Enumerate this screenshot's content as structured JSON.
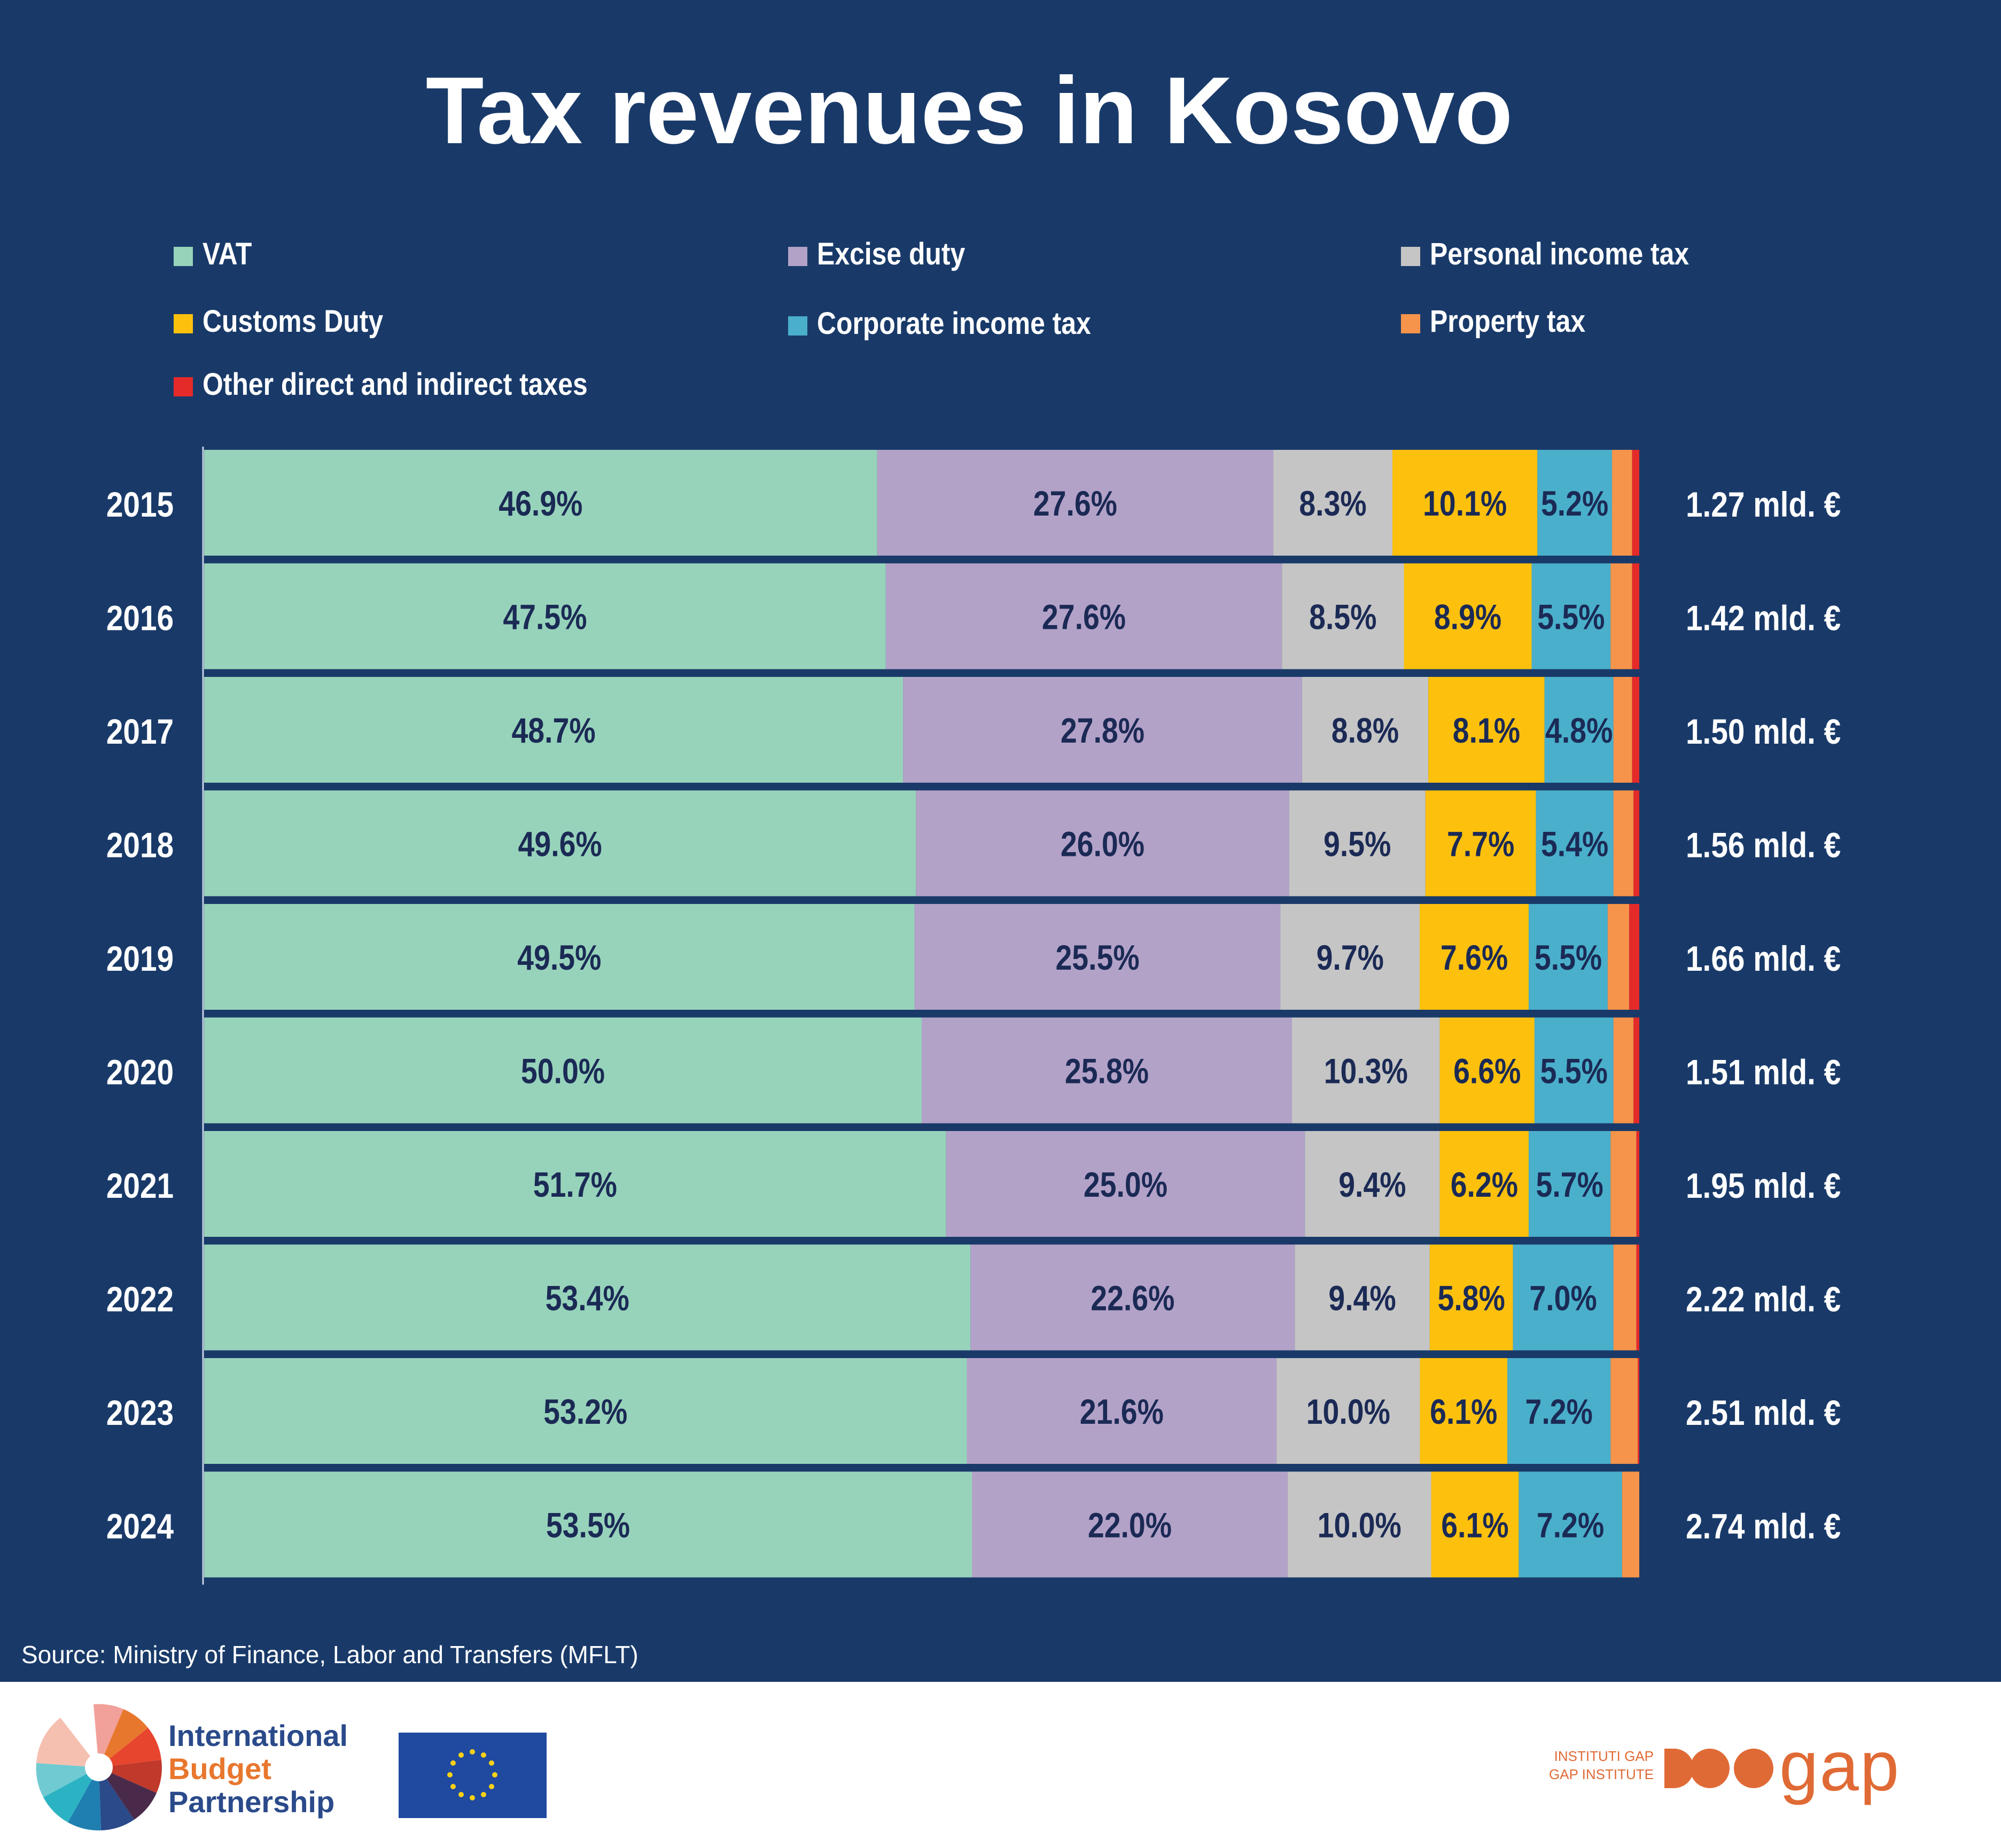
{
  "title": "Tax revenues in Kosovo",
  "legend": [
    {
      "label": "VAT",
      "color": "#97d3bb"
    },
    {
      "label": "Excise duty",
      "color": "#b3a2c8"
    },
    {
      "label": "Personal income tax",
      "color": "#c5c5c5"
    },
    {
      "label": "Customs Duty",
      "color": "#fdc10d"
    },
    {
      "label": "Corporate income tax",
      "color": "#4aafcb"
    },
    {
      "label": "Property tax",
      "color": "#f5944a"
    },
    {
      "label": "Other direct and indirect taxes",
      "color": "#e52a2a"
    }
  ],
  "chart_data": {
    "type": "bar",
    "orientation": "horizontal",
    "stacked": true,
    "normalized": true,
    "categories": [
      "2015",
      "2016",
      "2017",
      "2018",
      "2019",
      "2020",
      "2021",
      "2022",
      "2023",
      "2024"
    ],
    "series": [
      {
        "name": "VAT",
        "color": "#97d3bb",
        "values": [
          46.9,
          47.5,
          48.7,
          49.6,
          49.5,
          50.0,
          51.7,
          53.4,
          53.2,
          53.5
        ],
        "labels": [
          "46.9%",
          "47.5%",
          "48.7%",
          "49.6%",
          "49.5%",
          "50.0%",
          "51.7%",
          "53.4%",
          "53.2%",
          "53.5%"
        ]
      },
      {
        "name": "Excise duty",
        "color": "#b3a2c8",
        "values": [
          27.6,
          27.6,
          27.8,
          26.0,
          25.5,
          25.8,
          25.0,
          22.6,
          21.6,
          22.0
        ],
        "labels": [
          "27.6%",
          "27.6%",
          "27.8%",
          "26.0%",
          "25.5%",
          "25.8%",
          "25.0%",
          "22.6%",
          "21.6%",
          "22.0%"
        ]
      },
      {
        "name": "Personal income tax",
        "color": "#c5c5c5",
        "values": [
          8.3,
          8.5,
          8.8,
          9.5,
          9.7,
          10.3,
          9.4,
          9.4,
          10.0,
          10.0
        ],
        "labels": [
          "8.3%",
          "8.5%",
          "8.8%",
          "9.5%",
          "9.7%",
          "10.3%",
          "9.4%",
          "9.4%",
          "10.0%",
          "10.0%"
        ]
      },
      {
        "name": "Customs Duty",
        "color": "#fdc10d",
        "values": [
          10.1,
          8.9,
          8.1,
          7.7,
          7.6,
          6.6,
          6.2,
          5.8,
          6.1,
          6.1
        ],
        "labels": [
          "10.1%",
          "8.9%",
          "8.1%",
          "7.7%",
          "7.6%",
          "6.6%",
          "6.2%",
          "5.8%",
          "6.1%",
          "6.1%"
        ]
      },
      {
        "name": "Corporate income tax",
        "color": "#4aafcb",
        "values": [
          5.2,
          5.5,
          4.8,
          5.4,
          5.5,
          5.5,
          5.7,
          7.0,
          7.2,
          7.2
        ],
        "labels": [
          "5.2%",
          "5.5%",
          "4.8%",
          "5.4%",
          "5.5%",
          "5.5%",
          "5.7%",
          "7.0%",
          "7.2%",
          "7.2%"
        ]
      },
      {
        "name": "Property tax",
        "color": "#f5944a",
        "values": [
          1.4,
          1.5,
          1.3,
          1.4,
          1.5,
          1.4,
          1.8,
          1.6,
          1.9,
          1.2
        ],
        "labels": null
      },
      {
        "name": "Other direct and indirect taxes",
        "color": "#e52a2a",
        "values": [
          0.5,
          0.5,
          0.5,
          0.4,
          0.7,
          0.4,
          0.2,
          0.2,
          0.1,
          0.0
        ],
        "labels": null
      }
    ],
    "totals": [
      "1.27 mld. €",
      "1.42 mld. €",
      "1.50 mld. €",
      "1.56 mld. €",
      "1.66 mld. €",
      "1.51 mld. €",
      "1.95 mld. €",
      "2.22 mld. €",
      "2.51 mld. €",
      "2.74 mld. €"
    ],
    "xlim": [
      0,
      100
    ],
    "label_color": "#1b2a55"
  },
  "source": "Source: Ministry of Finance, Labor and Transfers (MFLT)",
  "footer": {
    "ibp_lines": [
      {
        "text": "International",
        "color": "#2a4a8a"
      },
      {
        "text": "Budget",
        "color": "#e8772e"
      },
      {
        "text": "Partnership",
        "color": "#2a4a8a"
      }
    ],
    "gap_lines": [
      "INSTITUTI GAP",
      "GAP INSTITUTE"
    ],
    "gap_wordmark": "gap",
    "gap_color": "#e06a35"
  }
}
